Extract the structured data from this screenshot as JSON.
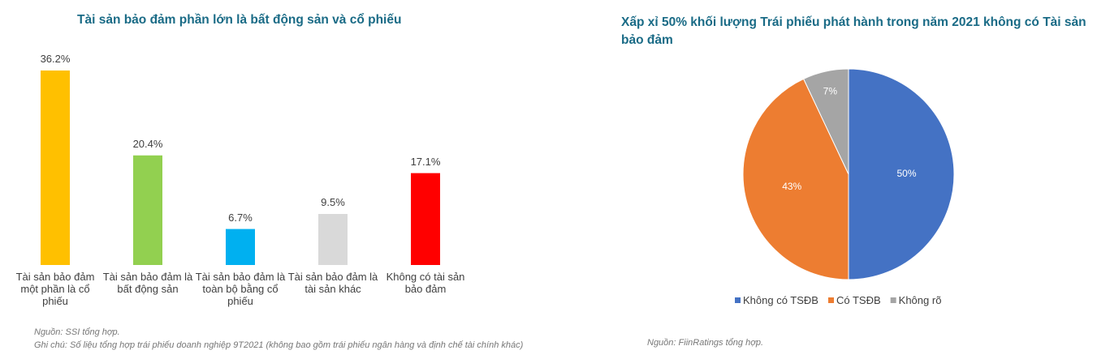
{
  "chart_data": [
    {
      "type": "bar",
      "title": "Tài sản bảo đảm phần lớn là bất động sản và cổ phiếu",
      "categories": [
        "Tài sản bảo đảm một phần là cổ phiếu",
        "Tài sản bảo đảm là bất động sản",
        "Tài sản bảo đảm là toàn bộ bằng cổ phiếu",
        "Tài sản bảo đảm là tài sản khác",
        "Không có tài sản bảo đảm"
      ],
      "values": [
        36.2,
        20.4,
        6.7,
        9.5,
        17.1
      ],
      "value_labels": [
        "36.2%",
        "20.4%",
        "6.7%",
        "9.5%",
        "17.1%"
      ],
      "colors": [
        "#ffc000",
        "#92d050",
        "#00b0f0",
        "#d9d9d9",
        "#ff0000"
      ],
      "source": "Nguồn: SSI tổng hợp.",
      "note": "Ghi chú: Số liệu tổng hợp trái phiếu doanh nghiệp 9T2021 (không bao gồm trái phiếu ngân hàng và định chế tài chính khác)"
    },
    {
      "type": "pie",
      "title": "Xấp xỉ 50% khối lượng Trái phiếu phát hành trong năm 2021 không có Tài sản bảo đảm",
      "categories": [
        "Không có TSĐB",
        "Có TSĐB",
        "Không rõ"
      ],
      "values": [
        50,
        43,
        7
      ],
      "value_labels": [
        "50%",
        "43%",
        "7%"
      ],
      "colors": [
        "#4472c4",
        "#ed7d31",
        "#a5a5a5"
      ],
      "source": "Nguồn: FiinRatings tổng hợp."
    }
  ]
}
